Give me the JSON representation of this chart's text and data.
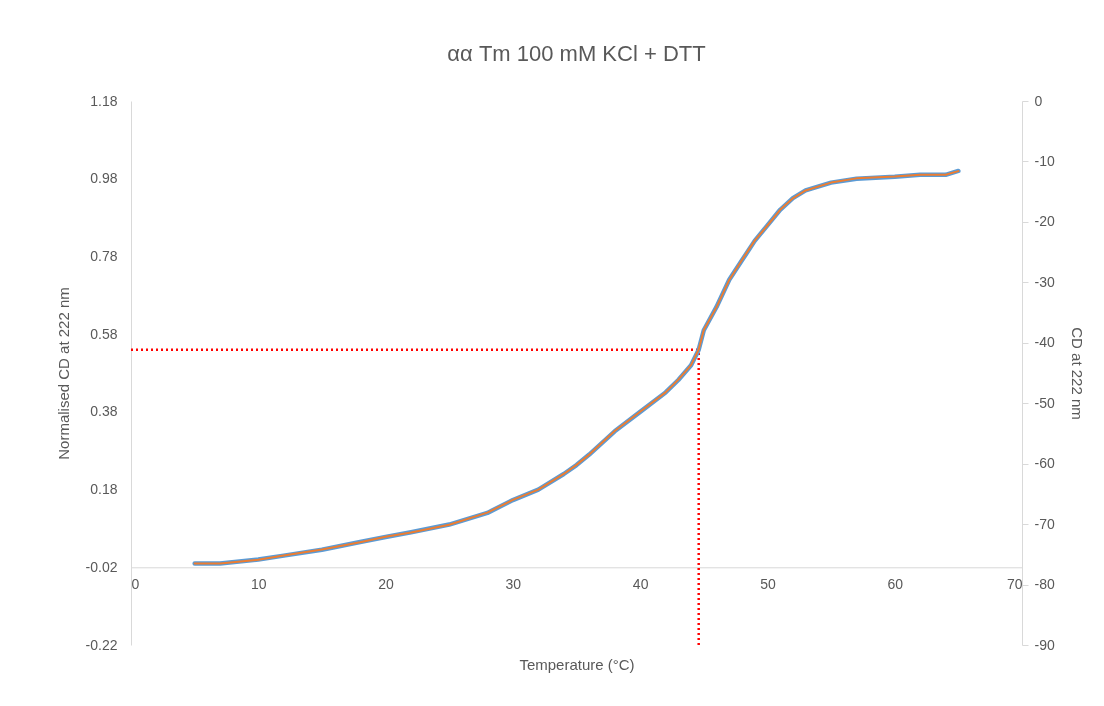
{
  "chart_data": {
    "type": "line",
    "title": "αα Tm 100 mM KCl + DTT",
    "xlabel": "Temperature (°C)",
    "ylabel": "Normalised CD at 222 nm",
    "y2label": "CD at 222 nm",
    "x": [
      5,
      7,
      10,
      12,
      15,
      18,
      20,
      22,
      25,
      28,
      30,
      32,
      34,
      35,
      36,
      38,
      40,
      42,
      43,
      44,
      44.6,
      45,
      46,
      47,
      48,
      49,
      50,
      51,
      52,
      53,
      55,
      57,
      60,
      62,
      64,
      65
    ],
    "series": [
      {
        "color": "#5b9bd5",
        "values": [
          -0.01,
          -0.01,
          0.0,
          0.01,
          0.025,
          0.045,
          0.058,
          0.07,
          0.09,
          0.12,
          0.153,
          0.18,
          0.22,
          0.243,
          0.27,
          0.33,
          0.38,
          0.43,
          0.462,
          0.5,
          0.54,
          0.59,
          0.65,
          0.72,
          0.77,
          0.82,
          0.86,
          0.9,
          0.93,
          0.95,
          0.97,
          0.98,
          0.985,
          0.99,
          0.99,
          1.0
        ]
      },
      {
        "color": "#ed7d31",
        "axis": "y2",
        "values": [
          -76.5,
          -76.5,
          -75.9,
          -75.2,
          -74.2,
          -73.0,
          -72.1,
          -71.4,
          -70.1,
          -68.1,
          -66.0,
          -64.3,
          -61.7,
          -60.2,
          -58.5,
          -54.6,
          -51.4,
          -48.2,
          -46.1,
          -43.7,
          -41.1,
          -37.9,
          -34.1,
          -29.6,
          -26.3,
          -23.1,
          -20.6,
          -18.0,
          -16.1,
          -14.8,
          -13.5,
          -12.8,
          -12.5,
          -12.2,
          -12.2,
          -11.6
        ]
      }
    ],
    "xlim": [
      0,
      70
    ],
    "xticks": [
      0,
      10,
      20,
      30,
      40,
      50,
      60,
      70
    ],
    "ylim": [
      -0.22,
      1.18
    ],
    "yticks": [
      -0.22,
      -0.02,
      0.18,
      0.38,
      0.58,
      0.78,
      0.98,
      1.18
    ],
    "y2lim": [
      -90,
      0
    ],
    "y2ticks": [
      -90,
      -80,
      -70,
      -60,
      -50,
      -40,
      -30,
      -20,
      -10,
      0
    ],
    "ref_lines": [
      {
        "axis": "y",
        "value": 0.54,
        "color": "#ff0000",
        "line_style": "dotted"
      },
      {
        "axis": "x",
        "value": 44.6,
        "color": "#ff0000",
        "line_style": "dotted"
      }
    ],
    "grid": false,
    "legend": false,
    "marker": "none",
    "line_style": "solid"
  }
}
